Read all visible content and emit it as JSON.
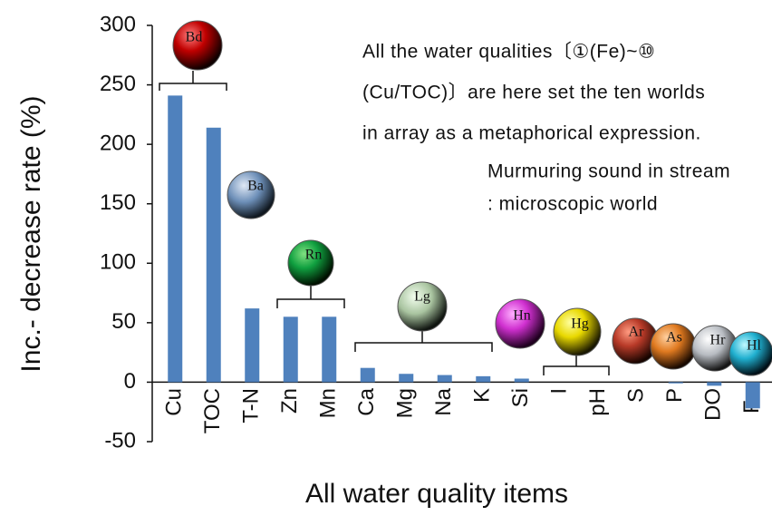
{
  "chart_data": {
    "type": "bar",
    "x_label": "All water quality items",
    "y_label": "Inc.- decrease rate (%)",
    "categories": [
      "Cu",
      "TOC",
      "T-N",
      "Zn",
      "Mn",
      "Ca",
      "Mg",
      "Na",
      "K",
      "Si",
      "I",
      "pH",
      "S",
      "P",
      "DO",
      "Fe"
    ],
    "values": [
      241,
      214,
      62,
      55,
      55,
      12,
      7,
      6,
      5,
      3,
      0,
      0,
      0,
      -1,
      -3,
      -22
    ],
    "color": "#4f81bd",
    "ylim": [
      -50,
      300
    ],
    "yticks": [
      -50,
      0,
      50,
      100,
      150,
      200,
      250,
      300
    ],
    "grid": false,
    "annotation_lines": [
      "All the water qualities〔①(Fe)~⑩",
      "(Cu/TOC)〕are here set the ten worlds",
      "in array as a metaphorical expression."
    ],
    "subnote_lines": [
      "Murmuring sound in stream",
      ": microscopic world"
    ],
    "worlds": [
      "Bd",
      "Ba",
      "Rn",
      "Lg",
      "Hn",
      "Hg",
      "Ar",
      "As",
      "Hr",
      "Hl"
    ]
  }
}
